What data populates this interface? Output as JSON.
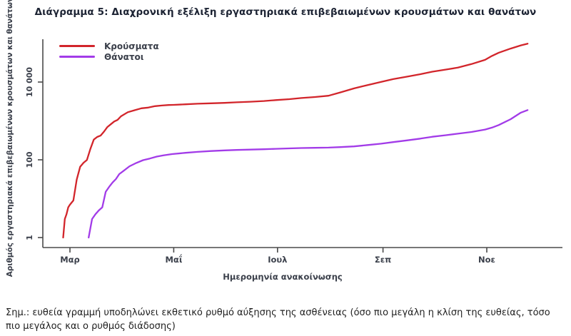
{
  "chart_data": {
    "type": "line",
    "title": "Διάγραμμα 5: Διαχρονική εξέλιξη εργαστηριακά επιβεβαιωμένων κρουσμάτων και θανάτων",
    "xlabel": "Ημερομηνία ανακοίνωσης",
    "ylabel": "Αριθμός εργαστηριακά επιβεβαιωμένων κρουσμάτων και θανάτων",
    "note": "Σημ.: ευθεία γραμμή υποδηλώνει εκθετικό ρυθμό αύξησης της ασθένειας (όσο πιο μεγάλη η κλίση της ευθείας, τόσο πιο μεγάλος και ο ρυθμός διάδοσης)",
    "y_scale": "log10",
    "ylim": [
      1,
      100000
    ],
    "grid": false,
    "legend_position": "top-left",
    "x_unit": "days since 1 March 2020",
    "x_ticks": [
      {
        "label": "Μαρ",
        "day": 0
      },
      {
        "label": "Μαΐ",
        "day": 61
      },
      {
        "label": "Ιουλ",
        "day": 122
      },
      {
        "label": "Σεπ",
        "day": 184
      },
      {
        "label": "Νοε",
        "day": 245
      }
    ],
    "y_ticks": [
      {
        "label": "1",
        "value": 1
      },
      {
        "label": "100",
        "value": 100
      },
      {
        "label": "10 000",
        "value": 10000
      }
    ],
    "axis_color": "#4a4a4a",
    "tick_label_color": "#3a3f4a",
    "series": [
      {
        "name": "Κρούσματα",
        "color": "#d2252b",
        "points": [
          [
            -4,
            1
          ],
          [
            -3,
            3
          ],
          [
            -2,
            4
          ],
          [
            -1,
            6
          ],
          [
            0,
            7
          ],
          [
            2,
            9
          ],
          [
            4,
            31
          ],
          [
            6,
            66
          ],
          [
            8,
            84
          ],
          [
            10,
            99
          ],
          [
            12,
            190
          ],
          [
            14,
            331
          ],
          [
            16,
            387
          ],
          [
            18,
            418
          ],
          [
            20,
            530
          ],
          [
            22,
            695
          ],
          [
            24,
            821
          ],
          [
            26,
            966
          ],
          [
            28,
            1061
          ],
          [
            30,
            1314
          ],
          [
            34,
            1673
          ],
          [
            38,
            1884
          ],
          [
            42,
            2114
          ],
          [
            46,
            2207
          ],
          [
            50,
            2401
          ],
          [
            54,
            2490
          ],
          [
            58,
            2566
          ],
          [
            61,
            2591
          ],
          [
            68,
            2678
          ],
          [
            75,
            2770
          ],
          [
            83,
            2840
          ],
          [
            91,
            2915
          ],
          [
            98,
            3015
          ],
          [
            106,
            3121
          ],
          [
            114,
            3256
          ],
          [
            121,
            3432
          ],
          [
            129,
            3622
          ],
          [
            136,
            3883
          ],
          [
            144,
            4110
          ],
          [
            152,
            4447
          ],
          [
            159,
            5420
          ],
          [
            167,
            6858
          ],
          [
            175,
            8381
          ],
          [
            183,
            10134
          ],
          [
            190,
            11868
          ],
          [
            198,
            13730
          ],
          [
            206,
            15928
          ],
          [
            213,
            18475
          ],
          [
            221,
            20947
          ],
          [
            228,
            23495
          ],
          [
            236,
            29057
          ],
          [
            244,
            37196
          ],
          [
            248,
            46892
          ],
          [
            252,
            56698
          ],
          [
            259,
            72510
          ],
          [
            265,
            87812
          ],
          [
            269,
            97288
          ]
        ]
      },
      {
        "name": "Θάνατοι",
        "color": "#a23be8",
        "points": [
          [
            11,
            1
          ],
          [
            13,
            3
          ],
          [
            15,
            4
          ],
          [
            17,
            5
          ],
          [
            19,
            6
          ],
          [
            21,
            15
          ],
          [
            23,
            20
          ],
          [
            25,
            26
          ],
          [
            27,
            32
          ],
          [
            29,
            43
          ],
          [
            31,
            50
          ],
          [
            35,
            68
          ],
          [
            39,
            83
          ],
          [
            43,
            98
          ],
          [
            47,
            108
          ],
          [
            51,
            121
          ],
          [
            55,
            130
          ],
          [
            60,
            140
          ],
          [
            68,
            151
          ],
          [
            75,
            160
          ],
          [
            83,
            168
          ],
          [
            91,
            175
          ],
          [
            98,
            179
          ],
          [
            106,
            183
          ],
          [
            114,
            187
          ],
          [
            121,
            192
          ],
          [
            129,
            197
          ],
          [
            136,
            201
          ],
          [
            144,
            203
          ],
          [
            152,
            206
          ],
          [
            159,
            212
          ],
          [
            167,
            221
          ],
          [
            175,
            240
          ],
          [
            183,
            260
          ],
          [
            190,
            285
          ],
          [
            198,
            315
          ],
          [
            206,
            350
          ],
          [
            213,
            391
          ],
          [
            221,
            430
          ],
          [
            228,
            469
          ],
          [
            236,
            520
          ],
          [
            244,
            601
          ],
          [
            248,
            673
          ],
          [
            252,
            784
          ],
          [
            259,
            1106
          ],
          [
            265,
            1630
          ],
          [
            269,
            1902
          ]
        ]
      }
    ]
  }
}
